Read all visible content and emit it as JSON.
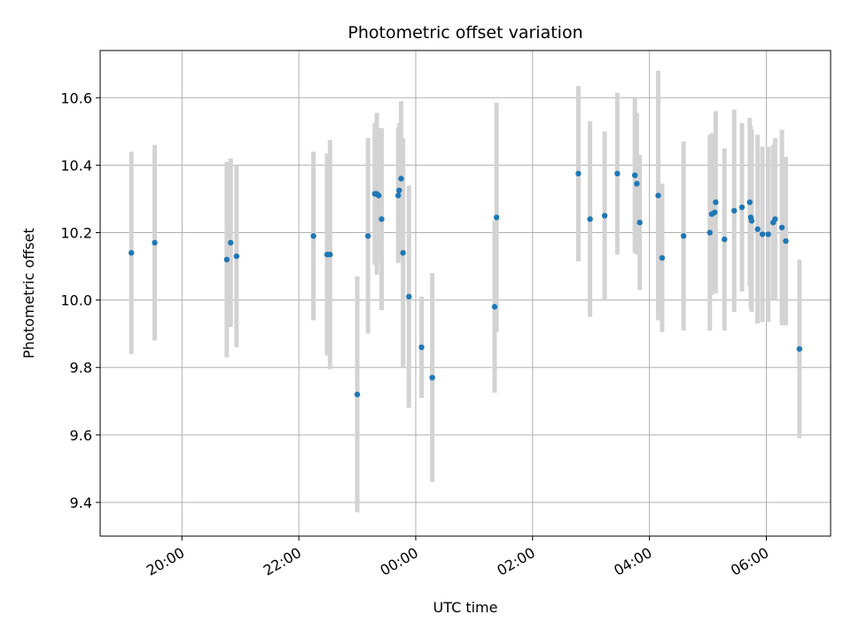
{
  "chart_data": {
    "type": "scatter",
    "title": "Photometric offset variation",
    "xlabel": "UTC time",
    "ylabel": "Photometric offset",
    "x_tick_labels": [
      "20:00",
      "22:00",
      "00:00",
      "02:00",
      "04:00",
      "06:00"
    ],
    "y_tick_labels": [
      "9.4",
      "9.6",
      "9.8",
      "10.0",
      "10.2",
      "10.4",
      "10.6"
    ],
    "xlim": [
      "18:36",
      "07:06"
    ],
    "ylim": [
      9.3,
      10.74
    ],
    "grid": true,
    "colors": {
      "point": "#1f77b4",
      "errorbar": "#d3d3d3",
      "grid": "#b0b0b0"
    },
    "series": [
      {
        "x": [
          "19:08",
          "19:32",
          "20:46",
          "20:50",
          "20:56",
          "22:15",
          "22:29",
          "22:32",
          "23:00",
          "23:11",
          "23:18",
          "23:20",
          "23:22",
          "23:25",
          "23:42",
          "23:43",
          "23:45",
          "23:47",
          "23:53",
          "24:06",
          "24:17",
          "25:21",
          "25:23",
          "26:47",
          "26:59",
          "27:14",
          "27:27",
          "27:45",
          "27:47",
          "27:50",
          "28:09",
          "28:13",
          "28:35",
          "29:02",
          "29:04",
          "29:07",
          "29:08",
          "29:17",
          "29:27",
          "29:35",
          "29:43",
          "29:44",
          "29:45",
          "29:51",
          "29:56",
          "30:02",
          "30:07",
          "30:09",
          "30:16",
          "30:20",
          "30:34"
        ],
        "y": [
          10.14,
          10.17,
          10.12,
          10.17,
          10.13,
          10.19,
          10.135,
          10.135,
          9.72,
          10.19,
          10.315,
          10.315,
          10.31,
          10.24,
          10.31,
          10.325,
          10.36,
          10.14,
          10.01,
          9.86,
          9.77,
          9.98,
          10.245,
          10.375,
          10.24,
          10.25,
          10.375,
          10.37,
          10.345,
          10.23,
          10.31,
          10.125,
          10.19,
          10.2,
          10.255,
          10.26,
          10.29,
          10.18,
          10.265,
          10.275,
          10.29,
          10.245,
          10.235,
          10.21,
          10.195,
          10.195,
          10.23,
          10.24,
          10.215,
          10.175,
          9.855
        ],
        "yerr": [
          0.3,
          0.29,
          0.29,
          0.25,
          0.27,
          0.25,
          0.3,
          0.34,
          0.35,
          0.29,
          0.21,
          0.24,
          0.2,
          0.27,
          0.2,
          0.2,
          0.23,
          0.34,
          0.33,
          0.15,
          0.31,
          0.255,
          0.34,
          0.26,
          0.29,
          0.25,
          0.24,
          0.23,
          0.21,
          0.2,
          0.37,
          0.22,
          0.28,
          0.29,
          0.24,
          0.23,
          0.27,
          0.27,
          0.3,
          0.25,
          0.25,
          0.27,
          0.27,
          0.28,
          0.26,
          0.26,
          0.23,
          0.24,
          0.29,
          0.25,
          0.265
        ]
      }
    ]
  }
}
